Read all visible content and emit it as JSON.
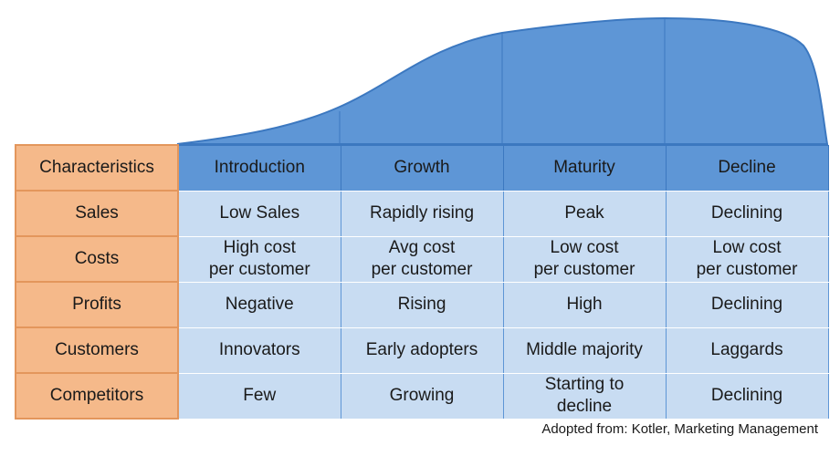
{
  "table": {
    "header": {
      "corner": "Characteristics",
      "stages": [
        "Introduction",
        "Growth",
        "Maturity",
        "Decline"
      ]
    },
    "rows": [
      {
        "label": "Sales",
        "cells": [
          "Low Sales",
          "Rapidly rising",
          "Peak",
          "Declining"
        ]
      },
      {
        "label": "Costs",
        "cells": [
          "High cost\nper customer",
          "Avg cost\nper customer",
          "Low cost\nper customer",
          "Low cost\nper customer"
        ]
      },
      {
        "label": "Profits",
        "cells": [
          "Negative",
          "Rising",
          "High",
          "Declining"
        ]
      },
      {
        "label": "Customers",
        "cells": [
          "Innovators",
          "Early adopters",
          "Middle majority",
          "Laggards"
        ]
      },
      {
        "label": "Competitors",
        "cells": [
          "Few",
          "Growing",
          "Starting to\ndecline",
          "Declining"
        ]
      }
    ]
  },
  "source_note": "Adopted from: Kotler, Marketing Management",
  "colors": {
    "curve_fill": "#5e96d6",
    "curve_stroke": "#3c78c0",
    "header_fill": "#5e96d6",
    "cell_fill": "#c8dcf2",
    "label_fill": "#f5b98a",
    "label_border": "#e3965c"
  }
}
